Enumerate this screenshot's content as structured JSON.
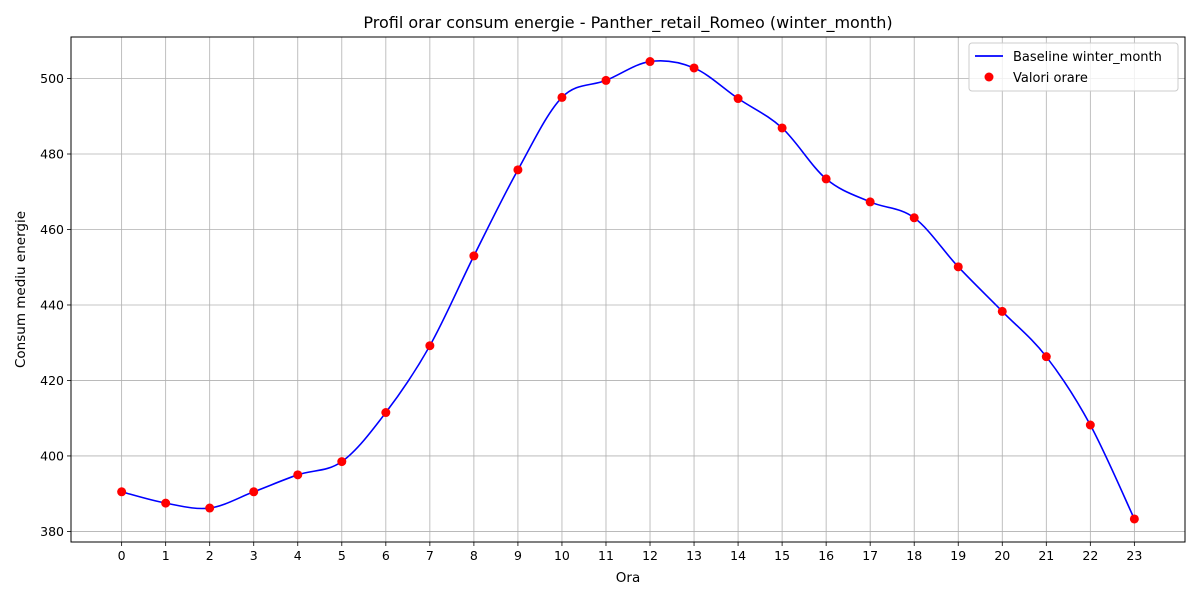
{
  "chart_data": {
    "type": "line",
    "title": "Profil orar consum energie - Panther_retail_Romeo (winter_month)",
    "xlabel": "Ora",
    "ylabel": "Consum mediu energie",
    "x": [
      0,
      1,
      2,
      3,
      4,
      5,
      6,
      7,
      8,
      9,
      10,
      11,
      12,
      13,
      14,
      15,
      16,
      17,
      18,
      19,
      20,
      21,
      22,
      23
    ],
    "x_tick_labels": [
      "0",
      "1",
      "2",
      "3",
      "4",
      "5",
      "6",
      "7",
      "8",
      "9",
      "10",
      "11",
      "12",
      "13",
      "14",
      "15",
      "16",
      "17",
      "18",
      "19",
      "20",
      "21",
      "22",
      "23"
    ],
    "xlim": [
      -1.15,
      24.15
    ],
    "ylim": [
      377.2,
      511.0
    ],
    "y_ticks": [
      380,
      400,
      420,
      440,
      460,
      480,
      500
    ],
    "y_tick_labels": [
      "380",
      "400",
      "420",
      "440",
      "460",
      "480",
      "500"
    ],
    "grid": true,
    "legend_position": "top-right",
    "series": [
      {
        "name": "Baseline winter_month",
        "kind": "line",
        "color": "#0000ff",
        "values": [
          390.5,
          387.5,
          386.2,
          390.5,
          395.0,
          398.5,
          411.5,
          429.2,
          453.0,
          475.8,
          495.0,
          499.5,
          504.5,
          502.8,
          494.7,
          486.9,
          473.4,
          467.3,
          463.1,
          450.1,
          438.3,
          426.3,
          408.2,
          383.3
        ]
      },
      {
        "name": "Valori orare",
        "kind": "scatter",
        "color": "#ff0000",
        "values": [
          390.5,
          387.5,
          386.2,
          390.5,
          395.0,
          398.5,
          411.5,
          429.2,
          453.0,
          475.8,
          495.0,
          499.5,
          504.5,
          502.8,
          494.7,
          486.9,
          473.4,
          467.3,
          463.1,
          450.1,
          438.3,
          426.3,
          408.2,
          383.3
        ]
      }
    ]
  }
}
